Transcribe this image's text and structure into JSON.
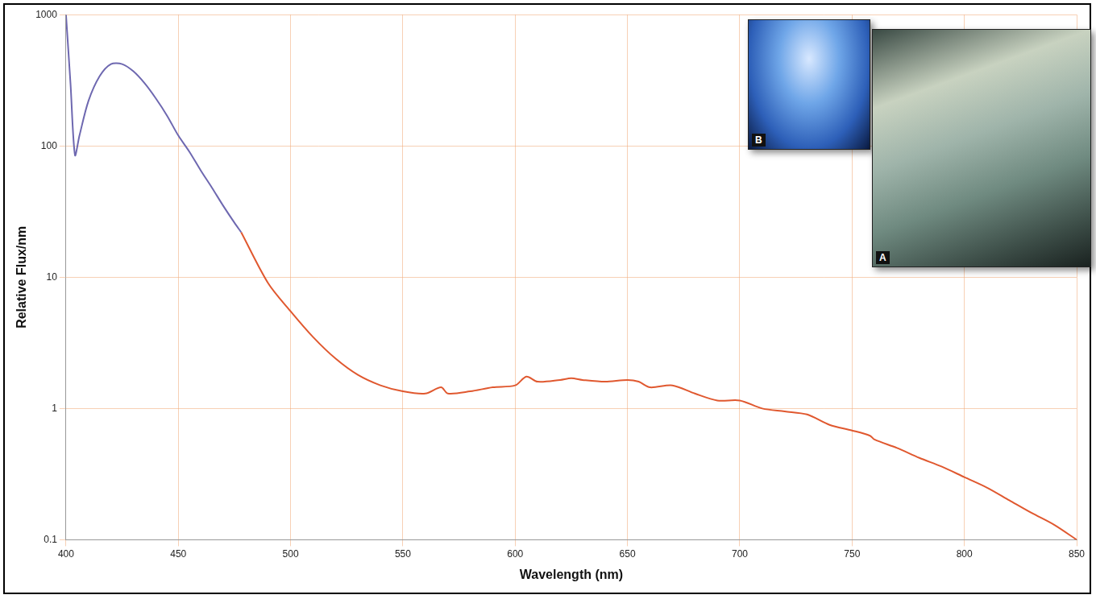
{
  "chart_data": {
    "type": "line",
    "x_label": "Wavelength (nm)",
    "y_label": "Relative Flux/nm",
    "annotations": [
      "B",
      "A"
    ],
    "series": [
      {
        "color": "#6e68b0",
        "x": [
          400,
          402,
          404,
          406,
          410,
          415,
          420,
          425,
          430,
          435,
          440,
          445,
          450,
          455,
          460,
          465,
          470,
          475,
          478
        ],
        "values": [
          1000,
          300,
          85,
          120,
          220,
          340,
          420,
          420,
          370,
          300,
          230,
          170,
          120,
          90,
          65,
          48,
          35,
          26,
          22
        ]
      },
      {
        "color": "#e0582f",
        "x": [
          478,
          490,
          500,
          510,
          520,
          530,
          540,
          550,
          560,
          567,
          570,
          580,
          590,
          600,
          605,
          610,
          620,
          625,
          630,
          640,
          650,
          655,
          660,
          670,
          680,
          690,
          700,
          710,
          720,
          730,
          740,
          750,
          758,
          760,
          770,
          780,
          790,
          800,
          810,
          820,
          830,
          840,
          850
        ],
        "values": [
          22,
          9,
          5.5,
          3.5,
          2.4,
          1.8,
          1.5,
          1.35,
          1.3,
          1.45,
          1.3,
          1.35,
          1.45,
          1.5,
          1.75,
          1.6,
          1.65,
          1.7,
          1.65,
          1.6,
          1.65,
          1.6,
          1.45,
          1.5,
          1.3,
          1.15,
          1.15,
          1.0,
          0.95,
          0.9,
          0.75,
          0.68,
          0.62,
          0.58,
          0.5,
          0.42,
          0.36,
          0.3,
          0.25,
          0.2,
          0.16,
          0.13,
          0.1
        ]
      }
    ],
    "xlim": [
      400,
      850
    ],
    "xticks": [
      400,
      450,
      500,
      550,
      600,
      650,
      700,
      750,
      800,
      850
    ],
    "ylim": [
      0.1,
      1000
    ],
    "yticks": [
      0.1,
      1,
      10,
      100,
      1000
    ],
    "log": "y",
    "grid": true
  }
}
